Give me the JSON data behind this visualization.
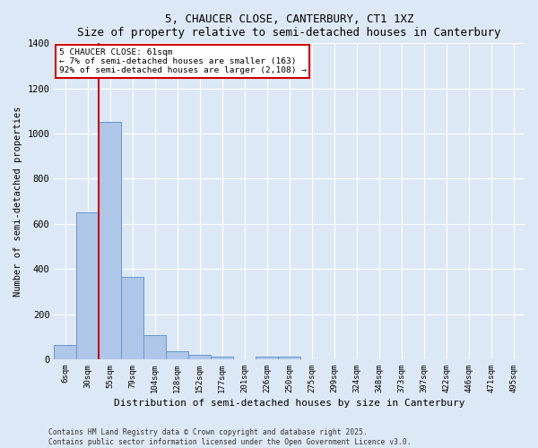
{
  "title1": "5, CHAUCER CLOSE, CANTERBURY, CT1 1XZ",
  "title2": "Size of property relative to semi-detached houses in Canterbury",
  "xlabel": "Distribution of semi-detached houses by size in Canterbury",
  "ylabel": "Number of semi-detached properties",
  "categories": [
    "6sqm",
    "30sqm",
    "55sqm",
    "79sqm",
    "104sqm",
    "128sqm",
    "152sqm",
    "177sqm",
    "201sqm",
    "226sqm",
    "250sqm",
    "275sqm",
    "299sqm",
    "324sqm",
    "348sqm",
    "373sqm",
    "397sqm",
    "422sqm",
    "446sqm",
    "471sqm",
    "495sqm"
  ],
  "values": [
    65,
    650,
    1050,
    365,
    105,
    35,
    20,
    10,
    0,
    10,
    10,
    0,
    0,
    0,
    0,
    0,
    0,
    0,
    0,
    0,
    0
  ],
  "bar_color": "#aec6e8",
  "bar_edge_color": "#6699cc",
  "bg_color": "#dce8f5",
  "grid_color": "#ffffff",
  "vline_color": "#cc0000",
  "vline_x_index": 1.5,
  "annotation_title": "5 CHAUCER CLOSE: 61sqm",
  "annotation_line1": "← 7% of semi-detached houses are smaller (163)",
  "annotation_line2": "92% of semi-detached houses are larger (2,108) →",
  "annotation_box_color": "#ffffff",
  "annotation_box_edge": "#cc0000",
  "footer1": "Contains HM Land Registry data © Crown copyright and database right 2025.",
  "footer2": "Contains public sector information licensed under the Open Government Licence v3.0.",
  "ylim": [
    0,
    1400
  ],
  "yticks": [
    0,
    200,
    400,
    600,
    800,
    1000,
    1200,
    1400
  ]
}
